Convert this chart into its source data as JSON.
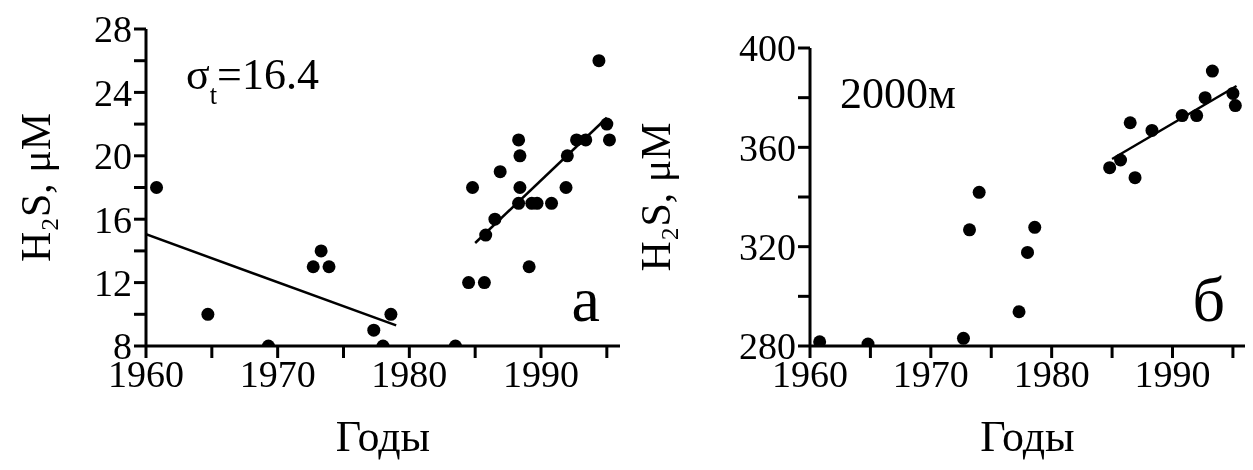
{
  "chart_data": [
    {
      "type": "scatter",
      "xlabel": "Годы",
      "ylabel": "H₂S, μM",
      "grid": false,
      "legend": false,
      "annotations": [
        "σ$_{t}$=16.4",
        "а"
      ],
      "xlim": [
        1960,
        1996
      ],
      "ylim": [
        8,
        28
      ],
      "xticks": [
        1960,
        {
          "value": 1965,
          "label": null
        },
        1970,
        {
          "value": 1975,
          "label": null
        },
        1980,
        {
          "value": 1985,
          "label": null
        },
        1990,
        {
          "value": 1995,
          "label": null
        }
      ],
      "yticks": [
        8,
        {
          "value": 10,
          "label": null
        },
        12,
        {
          "value": 14,
          "label": null
        },
        16,
        {
          "value": 18,
          "label": null
        },
        20,
        {
          "value": 22,
          "label": null
        },
        24,
        {
          "value": 26,
          "label": null
        },
        28
      ],
      "series": [
        {
          "marker": "circle",
          "color": "#000000",
          "x": [
            1960.8,
            1964.7,
            1969.3,
            1972.7,
            1973.3,
            1973.9,
            1977.3,
            1978.0,
            1978.6,
            1983.5,
            1984.5,
            1984.8,
            1985.7,
            1985.8,
            1986.5,
            1986.9,
            1988.3,
            1988.4,
            1988.4,
            1988.3,
            1989.1,
            1989.3,
            1989.7,
            1990.8,
            1991.9,
            1992.0,
            1992.7,
            1993.4,
            1994.4,
            1995.0,
            1995.2
          ],
          "values": [
            18,
            10,
            8,
            13,
            14,
            13,
            9,
            8,
            10,
            8,
            12,
            18,
            12,
            15,
            16,
            19,
            21,
            20,
            18,
            17,
            13,
            17,
            17,
            17,
            18,
            20,
            21,
            21,
            26,
            22,
            21
          ]
        },
        {
          "type": "line",
          "color": "#000000",
          "x": [
            1960,
            1979.0
          ],
          "values": [
            15.05,
            9.3
          ]
        },
        {
          "type": "line",
          "color": "#000000",
          "x": [
            1985.0,
            1995.0
          ],
          "values": [
            14.5,
            22.4
          ]
        }
      ]
    },
    {
      "type": "scatter",
      "xlabel": "Годы",
      "ylabel": "H₂S, μM",
      "grid": false,
      "legend": false,
      "annotations": [
        "2000м",
        "б"
      ],
      "xlim": [
        1960,
        1996
      ],
      "ylim": [
        280,
        400
      ],
      "xticks": [
        1960,
        {
          "value": 1965,
          "label": null
        },
        1970,
        {
          "value": 1975,
          "label": null
        },
        1980,
        {
          "value": 1985,
          "label": null
        },
        1990,
        {
          "value": 1995,
          "label": null
        }
      ],
      "yticks": [
        280,
        {
          "value": 300,
          "label": null
        },
        320,
        {
          "value": 340,
          "label": null
        },
        360,
        {
          "value": 380,
          "label": null
        },
        400
      ],
      "series": [
        {
          "marker": "circle",
          "color": "#000000",
          "x": [
            1960.8,
            1964.8,
            1972.7,
            1973.2,
            1974.0,
            1977.3,
            1978.0,
            1978.6,
            1984.8,
            1985.7,
            1986.5,
            1986.9,
            1988.3,
            1990.8,
            1992.0,
            1992.7,
            1993.3,
            1995.0,
            1995.2
          ],
          "values": [
            281.7,
            280.8,
            283.1,
            326.8,
            341.9,
            293.8,
            317.7,
            327.8,
            351.8,
            354.9,
            369.9,
            347.8,
            366.8,
            372.8,
            372.8,
            380,
            390.7,
            381.7,
            376.8
          ]
        },
        {
          "type": "line",
          "color": "#000000",
          "x": [
            1985.0,
            1995.3
          ],
          "values": [
            355.3,
            384.7
          ]
        }
      ]
    }
  ]
}
